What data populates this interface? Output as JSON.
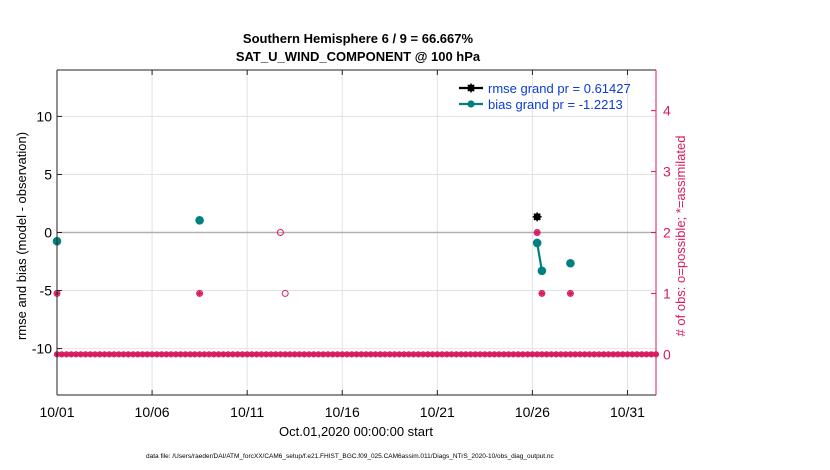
{
  "colors": {
    "rmse": "#000000",
    "bias": "#00807f",
    "obs": "#d81b60",
    "zero_line": "#b0b0b0",
    "grid": "#e2e2e2",
    "legend_text": "#0a3cd6"
  },
  "chart_data": {
    "type": "scatter",
    "title_line1": "Southern Hemisphere 6 / 9 = 66.667%",
    "title_line2": "SAT_U_WIND_COMPONENT @ 100 hPa",
    "xlabel": "Oct.01,2020 00:00:00 start",
    "ylabel_left": "rmse and bias (model - observation)",
    "ylabel_right": "# of obs: o=possible; *=assimilated",
    "x_ticks": [
      "10/01",
      "10/06",
      "10/11",
      "10/16",
      "10/21",
      "10/26",
      "10/31"
    ],
    "x_tick_days": [
      0,
      5,
      10,
      15,
      20,
      25,
      30
    ],
    "xlim": [
      0,
      31.5
    ],
    "y_left_ticks": [
      "10",
      "5",
      "0",
      "-5",
      "-10"
    ],
    "y_left_tick_values": [
      10,
      5,
      0,
      -5,
      -10
    ],
    "ylim_left": [
      -14,
      14
    ],
    "y_right_ticks": [
      "4",
      "3",
      "2",
      "1",
      "0"
    ],
    "y_right_tick_values": [
      4,
      3,
      2,
      1,
      0
    ],
    "ylim_right": [
      -0.667,
      4.667
    ],
    "grid": true,
    "legend_position": "top-right",
    "legend": [
      "rmse grand pr = 0.61427",
      "bias grand pr = -1.2213"
    ],
    "series": [
      {
        "name": "rmse grand pr = 0.61427",
        "role": "rmse",
        "marker": "star",
        "points": [
          [
            25.25,
            1.35
          ]
        ]
      },
      {
        "name": "bias grand pr = -1.2213",
        "role": "bias",
        "marker": "circle",
        "points": [
          [
            0.0,
            -0.75
          ],
          [
            7.5,
            1.05
          ],
          [
            25.25,
            -0.9
          ],
          [
            25.5,
            -3.3
          ],
          [
            27.0,
            -2.65
          ]
        ],
        "line_segments": [
          [
            [
              25.25,
              -0.9
            ],
            [
              25.5,
              -3.3
            ]
          ]
        ]
      },
      {
        "name": "possible",
        "role": "obs_possible",
        "marker": "open-circle",
        "points": [
          [
            0.0,
            1
          ],
          [
            7.5,
            1
          ],
          [
            11.75,
            2
          ],
          [
            12.0,
            1
          ],
          [
            25.25,
            2
          ],
          [
            25.5,
            1
          ],
          [
            27.0,
            1
          ]
        ]
      },
      {
        "name": "assimilated",
        "role": "obs_assimilated",
        "marker": "star",
        "points": [
          [
            0.0,
            1
          ],
          [
            7.5,
            1
          ],
          [
            25.25,
            2
          ],
          [
            25.5,
            1
          ],
          [
            27.0,
            1
          ]
        ]
      }
    ],
    "obs_zero_baseline": {
      "start_day": 0,
      "end_day": 31.5,
      "step_days": 0.25,
      "value": 0
    }
  },
  "footer": {
    "text": "data file: /Users/raeder/DAI/ATM_forcXX/CAM6_setup/f.e21.FHIST_BGC.f09_025.CAM6assim.011/Diags_NTrS_2020-10/obs_diag_output.nc"
  }
}
